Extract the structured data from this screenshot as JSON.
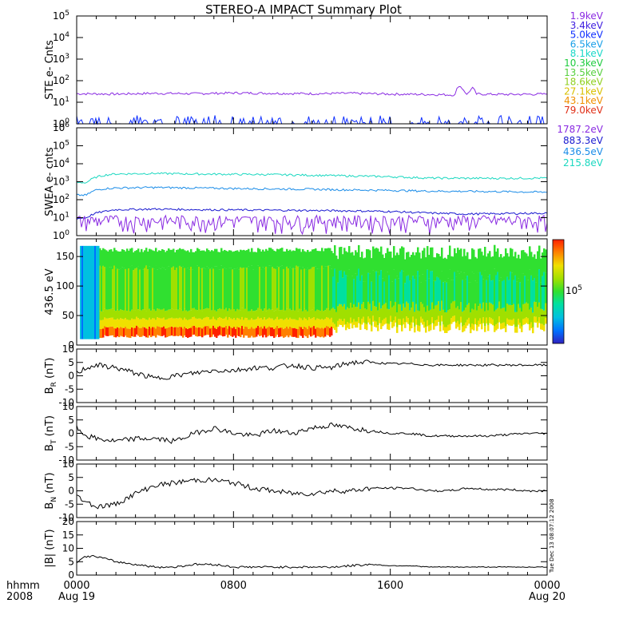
{
  "title": "STEREO-A IMPACT Summary Plot",
  "stamp": "Tue Dec 13 08:07:12 2008",
  "time_axis": {
    "corner_label": "hhmm",
    "corner_year": "2008",
    "ticks": [
      {
        "label": "0000",
        "date": "Aug 19",
        "hour": 0
      },
      {
        "label": "0800",
        "date": "",
        "hour": 8
      },
      {
        "label": "1600",
        "date": "",
        "hour": 16
      },
      {
        "label": "0000",
        "date": "Aug 20",
        "hour": 24
      }
    ],
    "range_hours": [
      0,
      24
    ]
  },
  "colors": {
    "ste_legend": [
      "#8a2be2",
      "#4020e0",
      "#1030ff",
      "#1aa0e8",
      "#1ad8c8",
      "#20cc40",
      "#58d040",
      "#90d020",
      "#d8c000",
      "#f09000",
      "#e03018"
    ],
    "swea_legend": [
      "#8a2be2",
      "#1a1ad0",
      "#1a8ce8",
      "#1ad8c0"
    ],
    "colorbar": [
      "#3020c0",
      "#0070ff",
      "#00c0e0",
      "#00e0a0",
      "#30e030",
      "#a0e000",
      "#f0e000",
      "#ff8000",
      "#ff2000"
    ]
  },
  "chart_data": [
    {
      "id": "ste",
      "type": "line",
      "ylabel": "STE e- Cnts",
      "yscale": "log",
      "ylim": [
        1,
        100000
      ],
      "yticks": [
        "10^0",
        "10^1",
        "10^2",
        "10^3",
        "10^4",
        "10^5"
      ],
      "legend": [
        "1.9keV",
        "3.4keV",
        "5.0keV",
        "6.5keV",
        "8.1keV",
        "10.3keV",
        "13.5keV",
        "18.6keV",
        "27.1keV",
        "43.1keV",
        "79.0keV"
      ],
      "series": [
        {
          "name": "1.9keV",
          "x": [
            0,
            2,
            4,
            6,
            8,
            10,
            12,
            14,
            16,
            18,
            19.3,
            19.5,
            19.9,
            20.2,
            20.4,
            22,
            24
          ],
          "y": [
            25,
            24,
            26,
            25,
            27,
            26,
            25,
            26,
            24,
            23,
            22,
            60,
            22,
            45,
            24,
            23,
            24
          ]
        },
        {
          "name": "3.4keV",
          "x": [
            0,
            6,
            12,
            18,
            24
          ],
          "y": [
            1,
            1,
            1,
            1,
            1
          ]
        }
      ]
    },
    {
      "id": "swea",
      "type": "line",
      "ylabel": "SWEA e- cnts",
      "yscale": "log",
      "ylim": [
        1,
        1000000
      ],
      "yticks": [
        "10^0",
        "10^1",
        "10^2",
        "10^3",
        "10^4",
        "10^5",
        "10^6"
      ],
      "legend": [
        "1787.2eV",
        "883.3eV",
        "436.5eV",
        "215.8eV"
      ],
      "series": [
        {
          "name": "215.8eV",
          "x": [
            0,
            0.5,
            1,
            1.5,
            2,
            4,
            6,
            8,
            10,
            12,
            14,
            16,
            18,
            20,
            22,
            24
          ],
          "y": [
            900,
            900,
            1800,
            2400,
            2700,
            2900,
            2700,
            2600,
            2500,
            2300,
            2100,
            1900,
            1600,
            1550,
            1550,
            1600
          ]
        },
        {
          "name": "436.5eV",
          "x": [
            0,
            0.5,
            1,
            1.5,
            2,
            4,
            6,
            8,
            10,
            12,
            14,
            16,
            18,
            20,
            22,
            24
          ],
          "y": [
            180,
            180,
            350,
            420,
            450,
            480,
            450,
            420,
            400,
            380,
            350,
            330,
            300,
            290,
            280,
            260
          ]
        },
        {
          "name": "883.3eV",
          "x": [
            0,
            0.5,
            1,
            2,
            4,
            6,
            8,
            10,
            12,
            14,
            16,
            18,
            20,
            22,
            24
          ],
          "y": [
            9,
            10,
            18,
            28,
            30,
            28,
            27,
            26,
            25,
            24,
            22,
            18,
            16,
            17,
            18
          ]
        },
        {
          "name": "1787.2eV",
          "x": [
            0,
            6,
            12,
            18,
            24
          ],
          "y": [
            5,
            5,
            5,
            5,
            5
          ]
        }
      ]
    },
    {
      "id": "pad",
      "type": "heatmap",
      "ylabel": "436.5 eV",
      "ylim": [
        0,
        180
      ],
      "yticks": [
        "0",
        "50",
        "100",
        "150"
      ],
      "colorbar_label": "10^5"
    },
    {
      "id": "br",
      "type": "line",
      "ylabel": "B_R (nT)",
      "ylim": [
        -10,
        10
      ],
      "yticks": [
        "-10",
        "-5",
        "0",
        "5",
        "10"
      ],
      "series": [
        {
          "name": "",
          "x": [
            0,
            0.5,
            1,
            2,
            3,
            4,
            5,
            6,
            7,
            8,
            9,
            10,
            11,
            12,
            13,
            14,
            15,
            16,
            17,
            18,
            19,
            20,
            21,
            22,
            23,
            24
          ],
          "y": [
            1,
            3,
            4,
            3,
            1,
            -1,
            0,
            1,
            2,
            2,
            3,
            3,
            4,
            3,
            3,
            5,
            5,
            4.5,
            4.5,
            4,
            4,
            4,
            4,
            4,
            4,
            4
          ]
        }
      ]
    },
    {
      "id": "bt",
      "type": "line",
      "ylabel": "B_T (nT)",
      "ylim": [
        -10,
        10
      ],
      "yticks": [
        "-10",
        "-5",
        "0",
        "5",
        "10"
      ],
      "series": [
        {
          "name": "",
          "x": [
            0,
            0.5,
            1,
            2,
            3,
            4,
            5,
            6,
            7,
            8,
            9,
            10,
            11,
            12,
            13,
            14,
            15,
            16,
            17,
            18,
            19,
            20,
            21,
            22,
            23,
            24
          ],
          "y": [
            2,
            -1,
            -2,
            -3,
            -2,
            -2,
            -3,
            0,
            2,
            0,
            -1,
            1,
            0,
            2,
            3,
            2,
            1,
            0,
            0,
            -1,
            -1,
            -1,
            -1,
            -0.5,
            0,
            0
          ]
        }
      ]
    },
    {
      "id": "bn",
      "type": "line",
      "ylabel": "B_N (nT)",
      "ylim": [
        -10,
        10
      ],
      "yticks": [
        "-10",
        "-5",
        "0",
        "5",
        "10"
      ],
      "series": [
        {
          "name": "",
          "x": [
            0,
            0.5,
            1,
            2,
            3,
            4,
            5,
            6,
            7,
            8,
            9,
            10,
            11,
            12,
            13,
            14,
            15,
            16,
            17,
            18,
            19,
            20,
            21,
            22,
            23,
            24
          ],
          "y": [
            -2,
            -4,
            -6,
            -5,
            -1,
            2,
            3,
            4,
            4,
            3,
            1,
            0,
            -1,
            -1,
            0,
            0,
            1,
            1,
            1,
            0,
            0,
            1,
            0.5,
            0.5,
            0,
            0
          ]
        }
      ]
    },
    {
      "id": "bt_mag",
      "type": "line",
      "ylabel": "|B| (nT)",
      "ylim": [
        0,
        20
      ],
      "yticks": [
        "0",
        "5",
        "10",
        "15",
        "20"
      ],
      "series": [
        {
          "name": "",
          "x": [
            0,
            0.5,
            1,
            2,
            3,
            4,
            5,
            6,
            7,
            8,
            9,
            10,
            11,
            12,
            13,
            14,
            15,
            16,
            17,
            18,
            19,
            20,
            21,
            22,
            23,
            24
          ],
          "y": [
            5,
            7,
            7,
            5,
            4,
            3,
            3,
            4,
            4,
            3,
            3,
            3,
            3,
            3,
            3,
            3.5,
            4,
            3.5,
            3.5,
            3,
            3,
            3,
            3,
            3,
            3,
            3
          ]
        }
      ]
    }
  ]
}
